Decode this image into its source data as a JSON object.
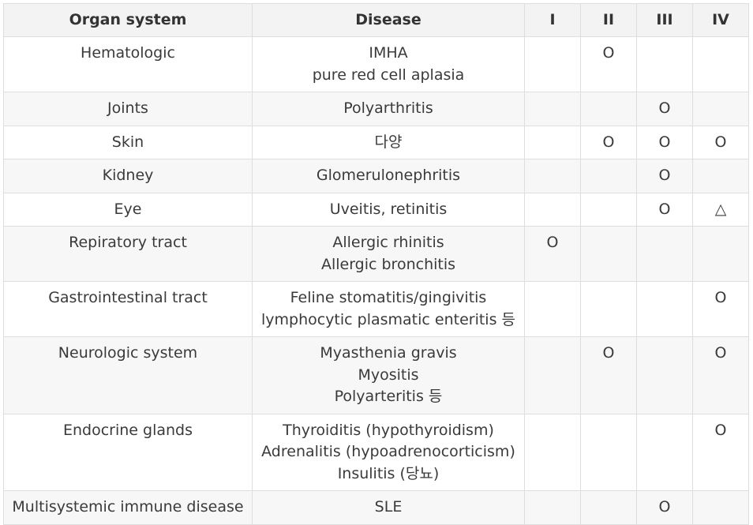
{
  "table": {
    "headers": [
      "Organ system",
      "Disease",
      "I",
      "II",
      "III",
      "IV"
    ],
    "rows": [
      {
        "organ": "Hematologic",
        "disease": [
          "IMHA",
          "pure red cell aplasia"
        ],
        "I": "",
        "II": "O",
        "III": "",
        "IV": ""
      },
      {
        "organ": "Joints",
        "disease": [
          "Polyarthritis"
        ],
        "I": "",
        "II": "",
        "III": "O",
        "IV": ""
      },
      {
        "organ": "Skin",
        "disease": [
          "다양"
        ],
        "I": "",
        "II": "O",
        "III": "O",
        "IV": "O"
      },
      {
        "organ": "Kidney",
        "disease": [
          "Glomerulonephritis"
        ],
        "I": "",
        "II": "",
        "III": "O",
        "IV": ""
      },
      {
        "organ": "Eye",
        "disease": [
          "Uveitis, retinitis"
        ],
        "I": "",
        "II": "",
        "III": "O",
        "IV": "△"
      },
      {
        "organ": "Repiratory tract",
        "disease": [
          "Allergic rhinitis",
          "Allergic bronchitis"
        ],
        "I": "O",
        "II": "",
        "III": "",
        "IV": ""
      },
      {
        "organ": "Gastrointestinal tract",
        "disease": [
          "Feline stomatitis/gingivitis",
          "lymphocytic plasmatic enteritis 등"
        ],
        "I": "",
        "II": "",
        "III": "",
        "IV": "O"
      },
      {
        "organ": "Neurologic system",
        "disease": [
          "Myasthenia gravis",
          "Myositis",
          "Polyarteritis 등"
        ],
        "I": "",
        "II": "O",
        "III": "",
        "IV": "O"
      },
      {
        "organ": "Endocrine glands",
        "disease": [
          "Thyroiditis (hypothyroidism)",
          "Adrenalitis (hypoadrenocorticism)",
          "Insulitis (당뇨)"
        ],
        "I": "",
        "II": "",
        "III": "",
        "IV": "O"
      },
      {
        "organ": "Multisystemic immune disease",
        "disease": [
          "SLE"
        ],
        "I": "",
        "II": "",
        "III": "O",
        "IV": ""
      }
    ]
  }
}
